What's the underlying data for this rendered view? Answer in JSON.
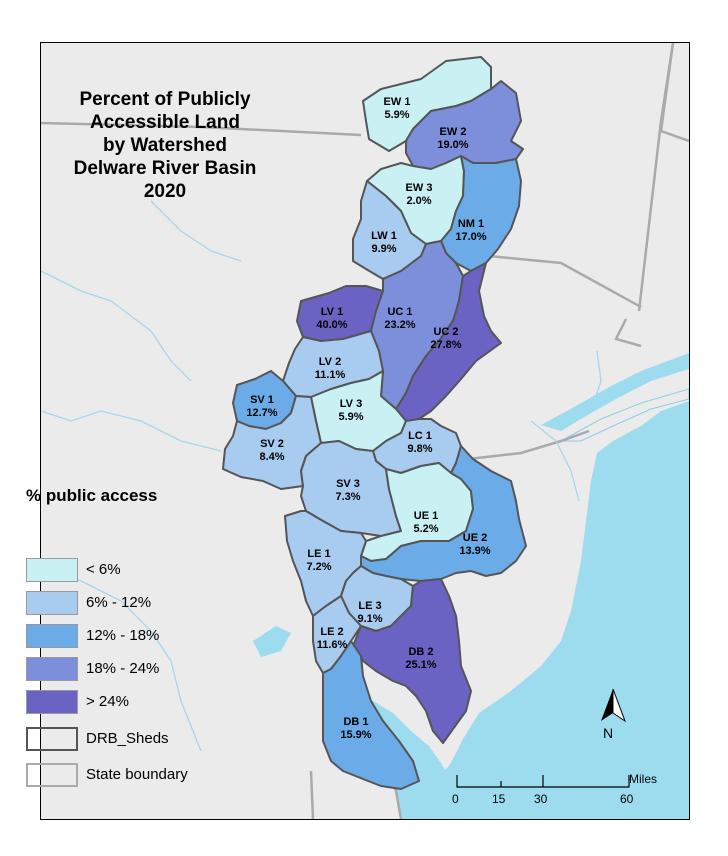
{
  "title": {
    "lines": [
      "Percent of Publicly",
      "Accessible Land",
      "by Watershed",
      "Delware River Basin",
      "2020"
    ]
  },
  "watersheds": [
    {
      "code": "EW 1",
      "value": "5.9%",
      "fill": "#c9f1f4"
    },
    {
      "code": "EW 2",
      "value": "19.0%",
      "fill": "#7d8fdb"
    },
    {
      "code": "EW 3",
      "value": "2.0%",
      "fill": "#c9f1f4"
    },
    {
      "code": "NM 1",
      "value": "17.0%",
      "fill": "#6aabe8"
    },
    {
      "code": "LW 1",
      "value": "9.9%",
      "fill": "#a8cbf0"
    },
    {
      "code": "LV 1",
      "value": "40.0%",
      "fill": "#6a63c4"
    },
    {
      "code": "UC 1",
      "value": "23.2%",
      "fill": "#7d8fdb"
    },
    {
      "code": "UC 2",
      "value": "27.8%",
      "fill": "#6a63c4"
    },
    {
      "code": "LV 2",
      "value": "11.1%",
      "fill": "#a8cbf0"
    },
    {
      "code": "SV 1",
      "value": "12.7%",
      "fill": "#6aabe8"
    },
    {
      "code": "LV 3",
      "value": "5.9%",
      "fill": "#c9f1f4"
    },
    {
      "code": "SV 2",
      "value": "8.4%",
      "fill": "#a8cbf0"
    },
    {
      "code": "LC 1",
      "value": "9.8%",
      "fill": "#a8cbf0"
    },
    {
      "code": "SV 3",
      "value": "7.3%",
      "fill": "#a8cbf0"
    },
    {
      "code": "UE 1",
      "value": "5.2%",
      "fill": "#c9f1f4"
    },
    {
      "code": "UE 2",
      "value": "13.9%",
      "fill": "#6aabe8"
    },
    {
      "code": "LE 1",
      "value": "7.2%",
      "fill": "#a8cbf0"
    },
    {
      "code": "LE 3",
      "value": "9.1%",
      "fill": "#a8cbf0"
    },
    {
      "code": "LE 2",
      "value": "11.6%",
      "fill": "#a8cbf0"
    },
    {
      "code": "DB 2",
      "value": "25.1%",
      "fill": "#6a63c4"
    },
    {
      "code": "DB 1",
      "value": "15.9%",
      "fill": "#6aabe8"
    }
  ],
  "legend": {
    "title": "% public access",
    "classes": [
      {
        "label": "< 6%",
        "color": "#c9f1f4"
      },
      {
        "label": "6% - 12%",
        "color": "#a8cbf0"
      },
      {
        "label": "12% - 18%",
        "color": "#6aabe8"
      },
      {
        "label": "18% - 24%",
        "color": "#7d8fdb"
      },
      {
        "label": "> 24%",
        "color": "#6a63c4"
      }
    ],
    "outline_items": [
      {
        "label": "DRB_Sheds",
        "stroke": "#555555"
      },
      {
        "label": "State boundary",
        "stroke": "#aaaaaa"
      }
    ]
  },
  "scale_bar": {
    "unit": "Miles",
    "ticks": [
      "0",
      "15",
      "30",
      "60"
    ]
  },
  "north_arrow": {
    "label": "N"
  },
  "colors": {
    "land": "#ebebeb",
    "water": "#9ddcef",
    "river": "#a7d6ee",
    "boundary": "#aaaaaa",
    "shed_outline": "#555555"
  }
}
